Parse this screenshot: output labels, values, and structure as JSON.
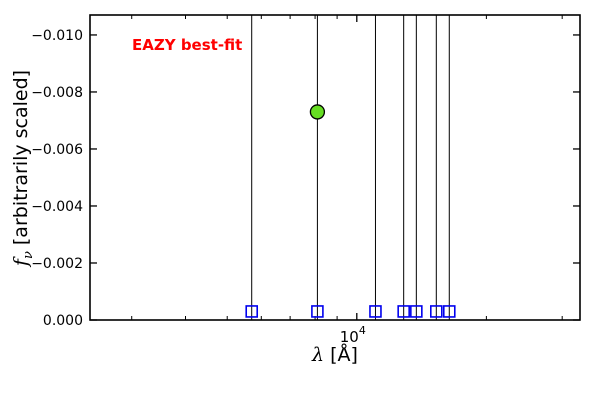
{
  "figure": {
    "annotation_label": "EAZY best-fit",
    "ylabel_f": "f",
    "ylabel_sub": "ν",
    "ylabel_rest": " [arbitrarily scaled]",
    "xlabel_lambda": "λ",
    "xlabel_rest": " [Å]",
    "xtick_base": "10",
    "xtick_exp": "4"
  },
  "chart_data": {
    "type": "scatter",
    "title": "",
    "xlabel": "lambda [Angstrom]",
    "ylabel": "f_nu [arbitrarily scaled]",
    "x_scale": "log",
    "y_axis_inverted": true,
    "xlim": [
      2400,
      33000
    ],
    "ylim_top": -0.0107,
    "ylim_bottom": 0.0,
    "yticks": [
      -0.01,
      -0.008,
      -0.006,
      -0.004,
      -0.002,
      0.0
    ],
    "ytick_labels": [
      "−0.010",
      "−0.008",
      "−0.006",
      "−0.004",
      "−0.002",
      "0.000"
    ],
    "xtick_major_value": 10000,
    "xtick_minor_values": [
      3000,
      4000,
      5000,
      6000,
      7000,
      8000,
      9000,
      20000,
      30000
    ],
    "grid": false,
    "legend": "none",
    "annotation": {
      "text": "EAZY best-fit",
      "color": "#ff0000",
      "position": "top-left"
    },
    "vertical_lines": {
      "color": "#000000",
      "wavelengths": [
        5700,
        8100,
        11050,
        12850,
        13750,
        15300,
        16400
      ]
    },
    "filter_squares": {
      "marker": "open-square",
      "color": "#0000ee",
      "y_value": -0.0003,
      "wavelengths": [
        5700,
        8100,
        11050,
        12850,
        13750,
        15300,
        16400
      ]
    },
    "observed_point": {
      "marker": "filled-circle",
      "fill_color": "#66dd22",
      "edge_color": "#000000",
      "wavelength": 8100,
      "y_value": -0.0073
    },
    "frame_color": "#000000"
  }
}
